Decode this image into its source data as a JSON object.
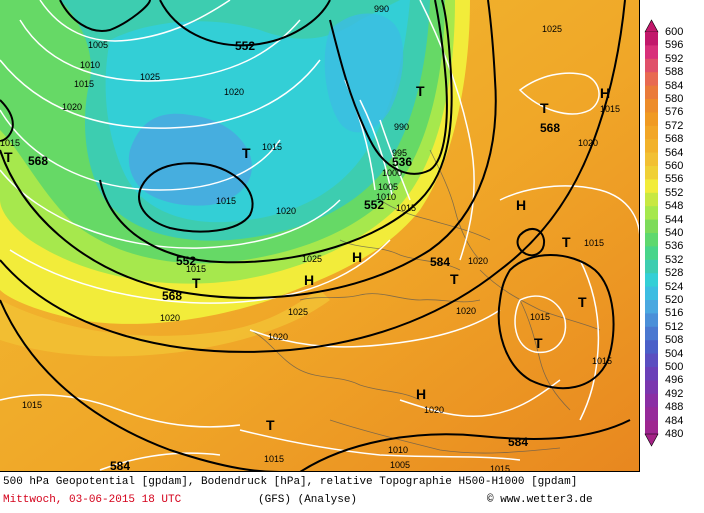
{
  "colors": {
    "deep_blue": "#4aa8e0",
    "cyan": "#33cfd6",
    "teal": "#3dcdb0",
    "green": "#66d966",
    "light_green": "#a6e84d",
    "yellow": "#f2ec3a",
    "orange_light": "#f2c033",
    "orange": "#f0a728",
    "orange_dark": "#e8871f",
    "contour": "#000000",
    "isobar": "#ffffff"
  },
  "legend": {
    "values": [
      "600",
      "596",
      "592",
      "588",
      "584",
      "580",
      "576",
      "572",
      "568",
      "564",
      "560",
      "556",
      "552",
      "548",
      "544",
      "540",
      "536",
      "532",
      "528",
      "524",
      "520",
      "516",
      "512",
      "508",
      "504",
      "500",
      "496",
      "492",
      "488",
      "484",
      "480"
    ],
    "colors": [
      "#c2186b",
      "#d8307a",
      "#e0506a",
      "#e86a52",
      "#ea7b3a",
      "#ed8c2a",
      "#f09a22",
      "#f2a626",
      "#f2b22a",
      "#f2c033",
      "#f0d036",
      "#f2ec3a",
      "#c8e842",
      "#a6e84d",
      "#7ddb5a",
      "#5ed86e",
      "#48d58a",
      "#3dcdb0",
      "#33cfd6",
      "#3cbde2",
      "#4aa8e0",
      "#4a8fd8",
      "#4a78d0",
      "#4a5fc8",
      "#5a4ec0",
      "#6a40b8",
      "#7a36ae",
      "#8a2ea4",
      "#962a9a",
      "#9e2690",
      "#a42286"
    ]
  },
  "map_labels": {
    "geopotential": [
      {
        "text": "552"
      },
      {
        "text": "568"
      },
      {
        "text": "536"
      },
      {
        "text": "552"
      },
      {
        "text": "552"
      },
      {
        "text": "568"
      },
      {
        "text": "584"
      },
      {
        "text": "568"
      },
      {
        "text": "584"
      }
    ],
    "pressure": [
      {
        "text": "990"
      },
      {
        "text": "1005"
      },
      {
        "text": "1010"
      },
      {
        "text": "1015"
      },
      {
        "text": "1025"
      },
      {
        "text": "1020"
      },
      {
        "text": "1015"
      },
      {
        "text": "990"
      },
      {
        "text": "995"
      },
      {
        "text": "1000"
      },
      {
        "text": "1005"
      },
      {
        "text": "1010"
      },
      {
        "text": "1015"
      },
      {
        "text": "1020"
      },
      {
        "text": "1015"
      },
      {
        "text": "1015"
      },
      {
        "text": "1025"
      },
      {
        "text": "1020"
      },
      {
        "text": "1015"
      },
      {
        "text": "1020"
      },
      {
        "text": "1025"
      },
      {
        "text": "1020"
      },
      {
        "text": "1025"
      },
      {
        "text": "1020"
      },
      {
        "text": "1015"
      },
      {
        "text": "1020"
      },
      {
        "text": "1015"
      },
      {
        "text": "1015"
      },
      {
        "text": "1020"
      },
      {
        "text": "1015"
      },
      {
        "text": "1010"
      },
      {
        "text": "1005"
      },
      {
        "text": "1015"
      },
      {
        "text": "1015"
      },
      {
        "text": "1020"
      },
      {
        "text": "1015"
      }
    ],
    "centers": [
      {
        "text": "T"
      },
      {
        "text": "T"
      },
      {
        "text": "T"
      },
      {
        "text": "T"
      },
      {
        "text": "T"
      },
      {
        "text": "T"
      },
      {
        "text": "T"
      },
      {
        "text": "T"
      },
      {
        "text": "T"
      },
      {
        "text": "T"
      },
      {
        "text": "H"
      },
      {
        "text": "H"
      },
      {
        "text": "H"
      },
      {
        "text": "H"
      },
      {
        "text": "H"
      }
    ]
  },
  "footer": {
    "line1": "500 hPa Geopotential [gpdam], Bodendruck [hPa], relative Topographie H500-H1000 [gpdam]",
    "date": "Mittwoch, 03-06-2015  18 UTC",
    "model": "(GFS)  (Analyse)",
    "copyright": "© www.wetter3.de"
  }
}
